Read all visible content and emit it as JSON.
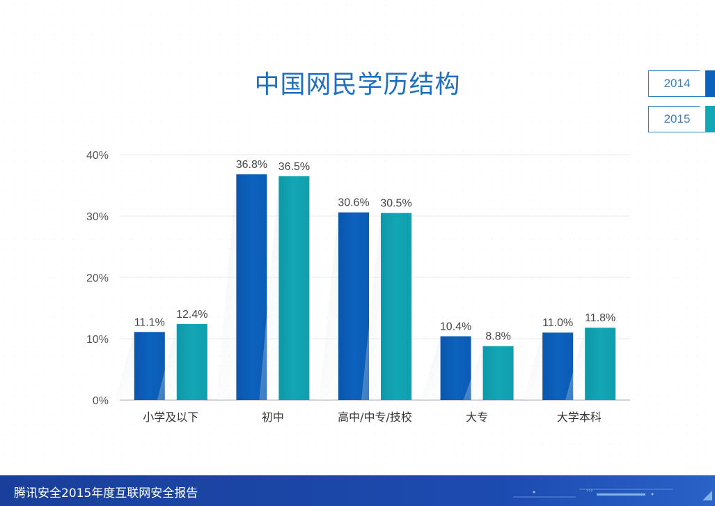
{
  "colors": {
    "series_2014": "#0c62bd",
    "series_2015": "#13a6b4",
    "title": "#1f6fc0",
    "footer_bg": "#1c45a8"
  },
  "chart_data": {
    "type": "bar",
    "title": "中国网民学历结构",
    "categories": [
      "小学及以下",
      "初中",
      "高中/中专/技校",
      "大专",
      "大学本科"
    ],
    "series": [
      {
        "name": "2014",
        "values": [
          11.1,
          36.8,
          30.6,
          10.4,
          11.0
        ],
        "labels": [
          "11.1%",
          "36.8%",
          "30.6%",
          "10.4%",
          "11.0%"
        ]
      },
      {
        "name": "2015",
        "values": [
          12.4,
          36.5,
          30.5,
          8.8,
          11.8
        ],
        "labels": [
          "12.4%",
          "36.5%",
          "30.5%",
          "8.8%",
          "11.8%"
        ]
      }
    ],
    "ylim": [
      0,
      40
    ],
    "yticks": [
      0,
      10,
      20,
      30,
      40
    ],
    "ytick_labels": [
      "0%",
      "10%",
      "20%",
      "30%",
      "40%"
    ],
    "grid": true,
    "legend_position": "top-right"
  },
  "footer": {
    "text": "腾讯安全2015年度互联网安全报告"
  }
}
